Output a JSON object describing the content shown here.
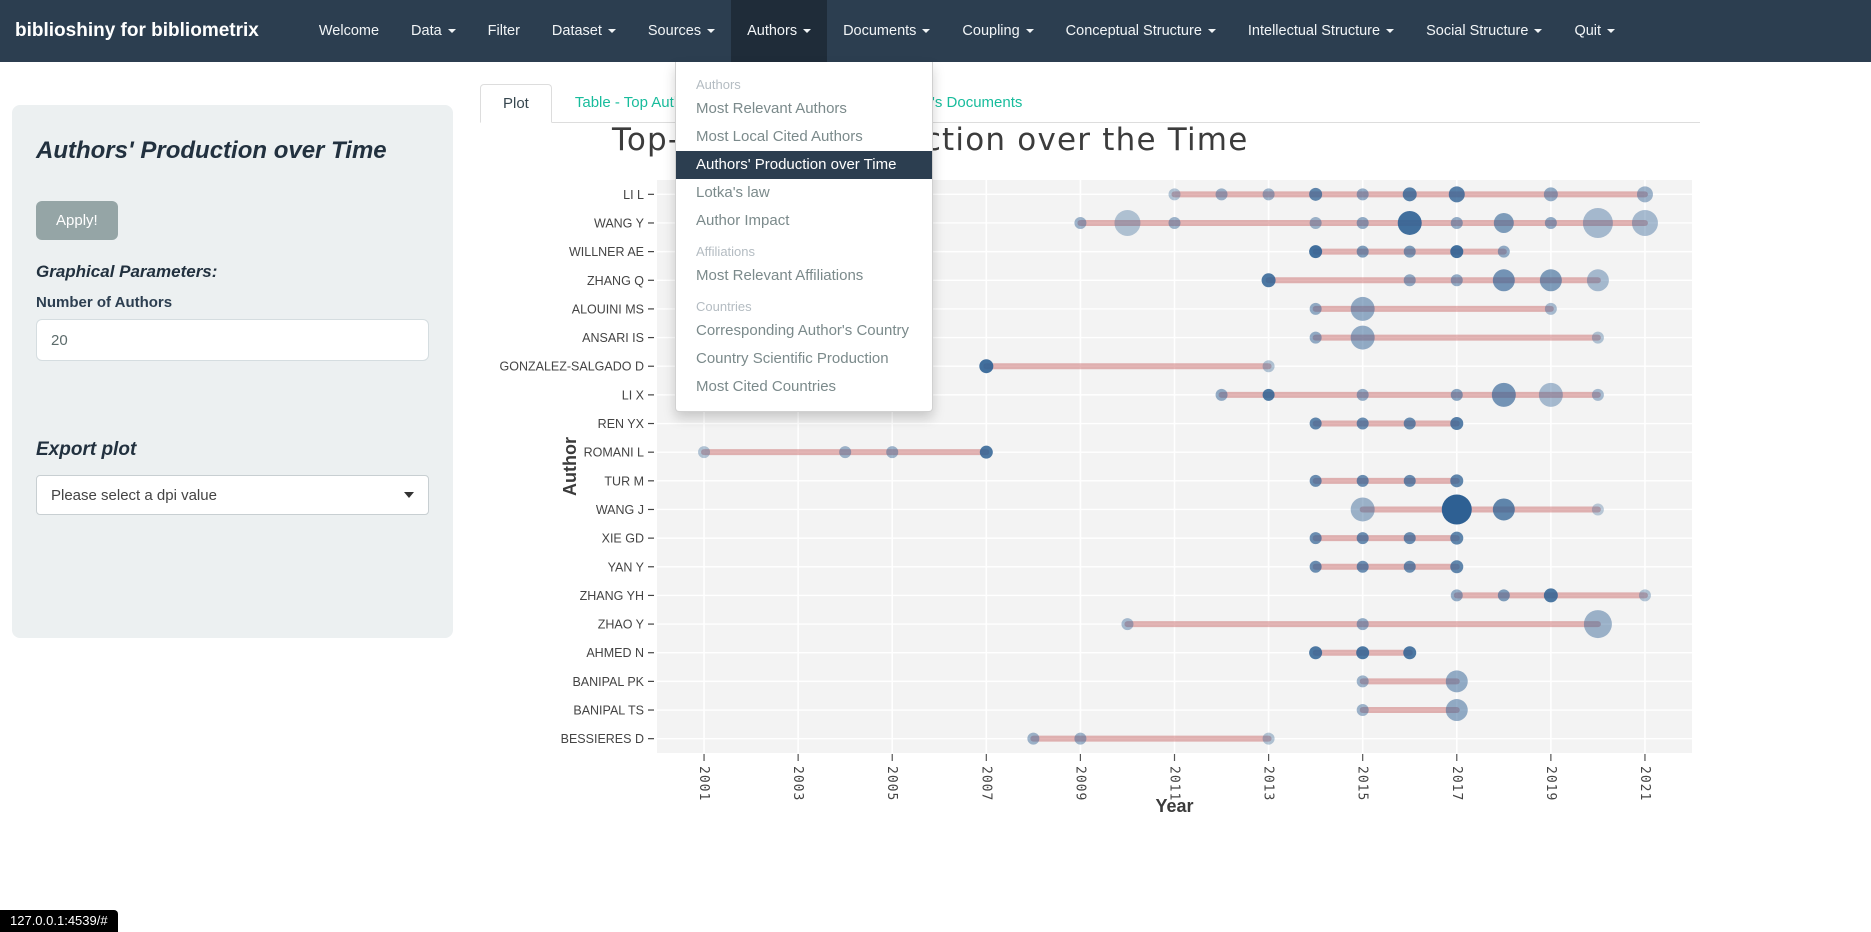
{
  "colors": {
    "navbar_bg": "#2c3e50",
    "navbar_active_bg": "#1f2c39",
    "accent_teal": "#18bc9c",
    "dropdown_active_bg": "#2c3e50",
    "plot_bg": "#f3f3f3",
    "timeline_color": "#ce7979",
    "dot_color": "#2e6093"
  },
  "navbar": {
    "brand": "biblioshiny for bibliometrix",
    "items": [
      {
        "label": "Welcome",
        "caret": false,
        "active": false
      },
      {
        "label": "Data",
        "caret": true,
        "active": false
      },
      {
        "label": "Filter",
        "caret": false,
        "active": false
      },
      {
        "label": "Dataset",
        "caret": true,
        "active": false
      },
      {
        "label": "Sources",
        "caret": true,
        "active": false
      },
      {
        "label": "Authors",
        "caret": true,
        "active": true
      },
      {
        "label": "Documents",
        "caret": true,
        "active": false
      },
      {
        "label": "Coupling",
        "caret": true,
        "active": false
      },
      {
        "label": "Conceptual Structure",
        "caret": true,
        "active": false
      },
      {
        "label": "Intellectual Structure",
        "caret": true,
        "active": false
      },
      {
        "label": "Social Structure",
        "caret": true,
        "active": false
      },
      {
        "label": "Quit",
        "caret": true,
        "active": false
      }
    ]
  },
  "authors_menu": {
    "sections": [
      {
        "header": "Authors",
        "items": [
          "Most Relevant Authors",
          "Most Local Cited Authors",
          "Authors' Production over Time",
          "Lotka's law",
          "Author Impact"
        ]
      },
      {
        "header": "Affiliations",
        "items": [
          "Most Relevant Affiliations"
        ]
      },
      {
        "header": "Countries",
        "items": [
          "Corresponding Author's Country",
          "Country Scientific Production",
          "Most Cited Countries"
        ]
      }
    ],
    "active_item": "Authors' Production over Time"
  },
  "sidebar": {
    "title": "Authors' Production over Time",
    "apply_label": "Apply!",
    "graphical_parameters_label": "Graphical Parameters:",
    "number_of_authors_label": "Number of Authors",
    "number_of_authors_value": "20",
    "export_label": "Export plot",
    "dpi_placeholder": "Please select a dpi value"
  },
  "tabs": {
    "items": [
      "Plot",
      "Table - Top Authors' Production per Year",
      "Author's Documents"
    ],
    "active_index": 0
  },
  "chart_data": {
    "type": "scatter",
    "title": "Top-Authors' Production over the Time",
    "xlabel": "Year",
    "ylabel": "Author",
    "x_range": [
      2000,
      2022
    ],
    "x_ticks": [
      2001,
      2003,
      2005,
      2007,
      2009,
      2011,
      2013,
      2015,
      2017,
      2019,
      2021
    ],
    "grid": true,
    "point_format": [
      "year",
      "radius_px",
      "opacity"
    ],
    "authors": [
      {
        "name": "LI L",
        "line": [
          2011,
          2021
        ],
        "points": [
          [
            2011,
            6,
            0.35
          ],
          [
            2012,
            6,
            0.45
          ],
          [
            2013,
            6,
            0.45
          ],
          [
            2014,
            6.5,
            0.75
          ],
          [
            2015,
            6,
            0.5
          ],
          [
            2016,
            7,
            0.8
          ],
          [
            2017,
            8,
            0.8
          ],
          [
            2019,
            7,
            0.5
          ],
          [
            2021,
            8,
            0.45
          ]
        ]
      },
      {
        "name": "WANG Y",
        "line": [
          2009,
          2021
        ],
        "points": [
          [
            2009,
            6,
            0.45
          ],
          [
            2010,
            13,
            0.35
          ],
          [
            2011,
            6,
            0.45
          ],
          [
            2014,
            6,
            0.45
          ],
          [
            2015,
            6,
            0.5
          ],
          [
            2016,
            12,
            0.9
          ],
          [
            2017,
            6,
            0.5
          ],
          [
            2018,
            10,
            0.6
          ],
          [
            2019,
            6,
            0.5
          ],
          [
            2020,
            15,
            0.4
          ],
          [
            2021,
            13,
            0.4
          ]
        ]
      },
      {
        "name": "WILLNER AE",
        "line": [
          2014,
          2018
        ],
        "points": [
          [
            2014,
            6.5,
            0.9
          ],
          [
            2015,
            6,
            0.6
          ],
          [
            2016,
            6,
            0.6
          ],
          [
            2017,
            6.5,
            0.9
          ],
          [
            2018,
            6,
            0.5
          ]
        ]
      },
      {
        "name": "ZHANG Q",
        "line": [
          2013,
          2020
        ],
        "points": [
          [
            2013,
            7,
            0.85
          ],
          [
            2016,
            6,
            0.5
          ],
          [
            2017,
            6,
            0.5
          ],
          [
            2018,
            11,
            0.65
          ],
          [
            2019,
            11,
            0.6
          ],
          [
            2020,
            11,
            0.4
          ]
        ]
      },
      {
        "name": "ALOUINI MS",
        "line": [
          2014,
          2019
        ],
        "points": [
          [
            2014,
            6,
            0.5
          ],
          [
            2015,
            12,
            0.5
          ],
          [
            2019,
            6,
            0.4
          ]
        ]
      },
      {
        "name": "ANSARI IS",
        "line": [
          2014,
          2020
        ],
        "points": [
          [
            2014,
            6,
            0.5
          ],
          [
            2015,
            12,
            0.5
          ],
          [
            2020,
            6,
            0.35
          ]
        ]
      },
      {
        "name": "GONZALEZ-SALGADO D",
        "line": [
          2007,
          2013
        ],
        "points": [
          [
            2007,
            7,
            0.9
          ],
          [
            2013,
            6,
            0.35
          ]
        ]
      },
      {
        "name": "LI X",
        "line": [
          2012,
          2020
        ],
        "points": [
          [
            2012,
            6,
            0.5
          ],
          [
            2013,
            6,
            0.85
          ],
          [
            2015,
            6,
            0.5
          ],
          [
            2017,
            6,
            0.55
          ],
          [
            2018,
            12,
            0.65
          ],
          [
            2019,
            12,
            0.4
          ],
          [
            2020,
            6,
            0.4
          ]
        ]
      },
      {
        "name": "REN YX",
        "line": [
          2014,
          2017
        ],
        "points": [
          [
            2014,
            6,
            0.75
          ],
          [
            2015,
            6,
            0.7
          ],
          [
            2016,
            6,
            0.7
          ],
          [
            2017,
            6.5,
            0.8
          ]
        ]
      },
      {
        "name": "ROMANI L",
        "line": [
          2001,
          2007
        ],
        "points": [
          [
            2001,
            6,
            0.35
          ],
          [
            2004,
            6,
            0.45
          ],
          [
            2005,
            6,
            0.45
          ],
          [
            2007,
            6.5,
            0.85
          ]
        ]
      },
      {
        "name": "TUR M",
        "line": [
          2014,
          2017
        ],
        "points": [
          [
            2014,
            6,
            0.7
          ],
          [
            2015,
            6,
            0.7
          ],
          [
            2016,
            6,
            0.7
          ],
          [
            2017,
            6.5,
            0.75
          ]
        ]
      },
      {
        "name": "WANG J",
        "line": [
          2015,
          2020
        ],
        "points": [
          [
            2015,
            12,
            0.45
          ],
          [
            2017,
            15,
            1.0
          ],
          [
            2018,
            11,
            0.75
          ],
          [
            2020,
            6,
            0.3
          ]
        ]
      },
      {
        "name": "XIE GD",
        "line": [
          2014,
          2017
        ],
        "points": [
          [
            2014,
            6,
            0.7
          ],
          [
            2015,
            6,
            0.7
          ],
          [
            2016,
            6,
            0.7
          ],
          [
            2017,
            6.5,
            0.75
          ]
        ]
      },
      {
        "name": "YAN Y",
        "line": [
          2014,
          2017
        ],
        "points": [
          [
            2014,
            6,
            0.7
          ],
          [
            2015,
            6,
            0.7
          ],
          [
            2016,
            6,
            0.7
          ],
          [
            2017,
            6.5,
            0.75
          ]
        ]
      },
      {
        "name": "ZHANG YH",
        "line": [
          2017,
          2021
        ],
        "points": [
          [
            2017,
            6,
            0.5
          ],
          [
            2018,
            6,
            0.6
          ],
          [
            2019,
            7,
            0.85
          ],
          [
            2021,
            6,
            0.35
          ]
        ]
      },
      {
        "name": "ZHAO Y",
        "line": [
          2010,
          2020
        ],
        "points": [
          [
            2010,
            6,
            0.4
          ],
          [
            2015,
            6,
            0.5
          ],
          [
            2020,
            14,
            0.45
          ]
        ]
      },
      {
        "name": "AHMED N",
        "line": [
          2014,
          2016
        ],
        "points": [
          [
            2014,
            6.5,
            0.85
          ],
          [
            2015,
            6.5,
            0.85
          ],
          [
            2016,
            6.5,
            0.85
          ]
        ]
      },
      {
        "name": "BANIPAL PK",
        "line": [
          2015,
          2017
        ],
        "points": [
          [
            2015,
            6,
            0.45
          ],
          [
            2017,
            11,
            0.5
          ]
        ]
      },
      {
        "name": "BANIPAL TS",
        "line": [
          2015,
          2017
        ],
        "points": [
          [
            2015,
            6,
            0.45
          ],
          [
            2017,
            11,
            0.5
          ]
        ]
      },
      {
        "name": "BESSIERES D",
        "line": [
          2008,
          2013
        ],
        "points": [
          [
            2008,
            6,
            0.45
          ],
          [
            2009,
            6,
            0.45
          ],
          [
            2013,
            6,
            0.35
          ]
        ]
      }
    ]
  },
  "status_bar": {
    "url": "127.0.0.1:4539/#"
  }
}
